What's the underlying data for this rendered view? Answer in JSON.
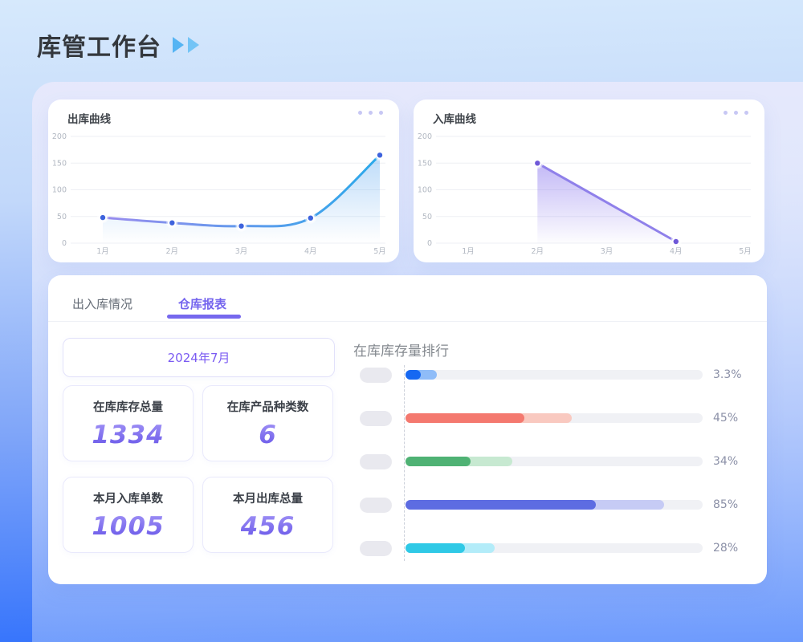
{
  "page": {
    "title": "库管工作台",
    "bg_top": "#d6e9fc",
    "bg_bottom": "#2e6ffc",
    "accent_purple": "#7668ee",
    "accent_blue": "#55b4f3"
  },
  "cards": {
    "outbound": {
      "title": "出库曲线",
      "menu_icon": "ellipsis"
    },
    "inbound": {
      "title": "入库曲线",
      "menu_icon": "ellipsis"
    }
  },
  "chart_data": [
    {
      "type": "line",
      "title": "出库曲线",
      "x": [
        "1月",
        "2月",
        "3月",
        "4月",
        "5月"
      ],
      "series": [
        {
          "name": "出库",
          "values": [
            48,
            38,
            32,
            47,
            165
          ]
        }
      ],
      "ylim": [
        0,
        200
      ],
      "yticks": [
        0,
        50,
        100,
        150,
        200
      ],
      "grid": true,
      "smooth": true,
      "legend": "none",
      "line_gradient": [
        "#9a8bee",
        "#2aa9ea"
      ],
      "dot_color": "#3e63dd",
      "area_gradient": [
        "rgba(109,176,241,0.45)",
        "rgba(109,176,241,0)"
      ]
    },
    {
      "type": "line",
      "title": "入库曲线",
      "x": [
        "1月",
        "2月",
        "3月",
        "4月",
        "5月"
      ],
      "series": [
        {
          "name": "入库",
          "values": [
            null,
            150,
            null,
            3,
            null
          ]
        }
      ],
      "ylim": [
        0,
        200
      ],
      "yticks": [
        0,
        50,
        100,
        150,
        200
      ],
      "grid": true,
      "smooth": false,
      "legend": "none",
      "line_gradient": [
        "#8f80ea",
        "#8f80ea"
      ],
      "dot_color": "#6f58d8",
      "area_gradient": [
        "rgba(144,126,238,0.55)",
        "rgba(144,126,238,0.02)"
      ]
    },
    {
      "type": "bar",
      "title": "在库库存量排行",
      "orientation": "horizontal",
      "rows": [
        {
          "percent_label": "3.3%",
          "value": 3.3,
          "solid_pct": 5,
          "light_pct": 10.5,
          "bar_color": "#1668f2",
          "bar_light": "#8fbcf8"
        },
        {
          "percent_label": "45%",
          "value": 45,
          "solid_pct": 40,
          "light_pct": 56,
          "bar_color": "#f4796f",
          "bar_light": "#f9c9c0"
        },
        {
          "percent_label": "34%",
          "value": 34,
          "solid_pct": 22,
          "light_pct": 36,
          "bar_color": "#4fb274",
          "bar_light": "#c7e9d1"
        },
        {
          "percent_label": "85%",
          "value": 85,
          "solid_pct": 64,
          "light_pct": 87,
          "bar_color": "#5d6ce2",
          "bar_light": "#c6cbf5"
        },
        {
          "percent_label": "28%",
          "value": 28,
          "solid_pct": 20,
          "light_pct": 30,
          "bar_color": "#2fc9e6",
          "bar_light": "#b3ecf9"
        }
      ]
    }
  ],
  "tabs": [
    {
      "label": "出入库情况",
      "active": false
    },
    {
      "label": "仓库报表",
      "active": true
    }
  ],
  "report": {
    "month_selector": "2024年7月",
    "stats": [
      {
        "label": "在库库存总量",
        "value": "1334"
      },
      {
        "label": "在库产品种类数",
        "value": "6"
      },
      {
        "label": "本月入库单数",
        "value": "1005"
      },
      {
        "label": "本月出库总量",
        "value": "456"
      }
    ],
    "ranking": {
      "title": "在库库存量排行"
    }
  }
}
